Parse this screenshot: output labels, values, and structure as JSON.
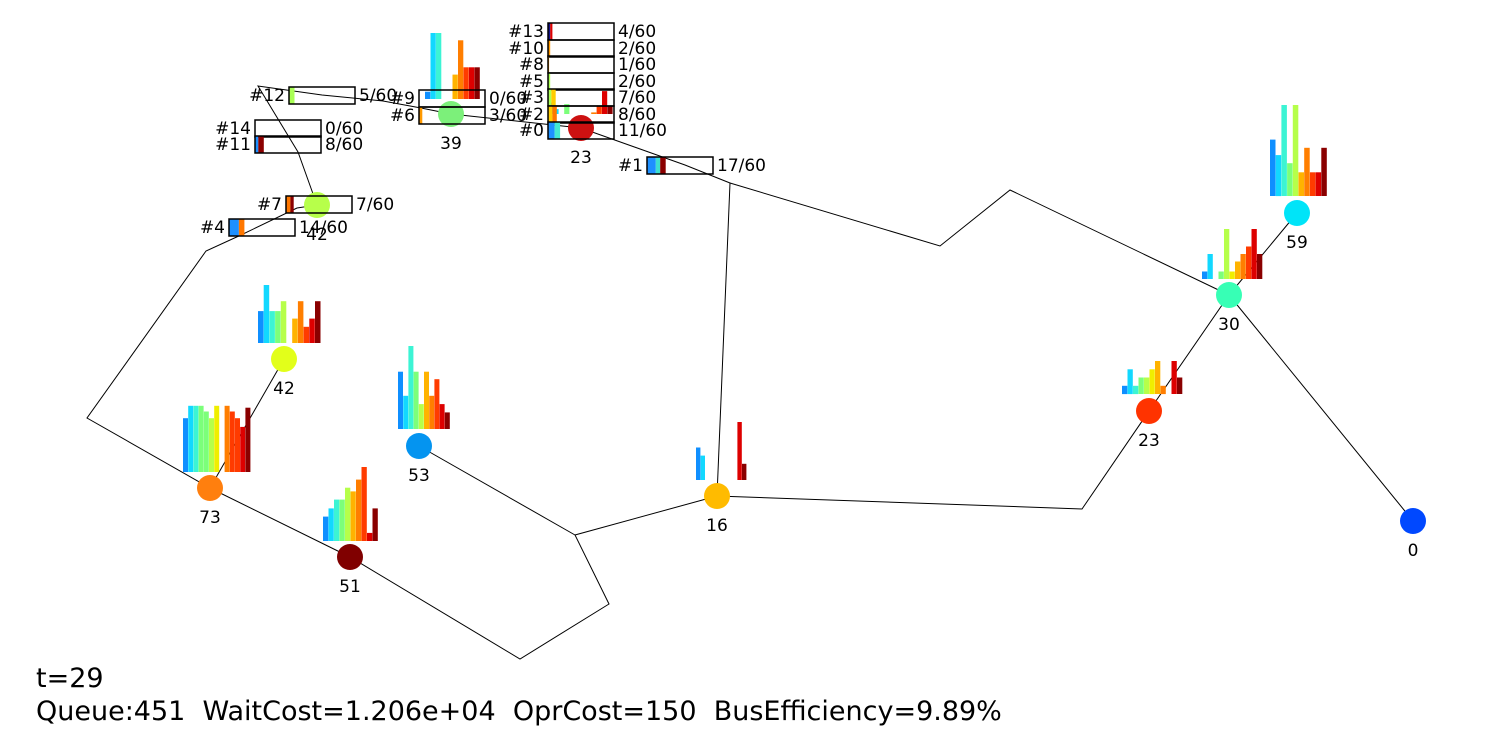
{
  "chart_data": {
    "type": "network",
    "title": "",
    "time_label": "t=29",
    "summary": {
      "queue_label": "Queue:451",
      "wait_cost_label": "WaitCost=1.206e+04",
      "opr_cost_label": "OprCost=150",
      "bus_efficiency_label": "BusEfficiency=9.89%"
    },
    "colormap": [
      "#0f8fff",
      "#12d8ff",
      "#3cf4d4",
      "#7cff7a",
      "#b6ff4a",
      "#f0ee00",
      "#ffb300",
      "#ff7e00",
      "#ff3b00",
      "#dd0000",
      "#8a0000"
    ],
    "stops": [
      {
        "id": "stop-a",
        "queue": 42,
        "label": "42",
        "color": "#e2ff1a",
        "histogram": [
          0.55,
          1.0,
          0.55,
          0.55,
          0.72,
          0.0,
          0.42,
          0.72,
          0.28,
          0.42,
          0.72
        ]
      },
      {
        "id": "stop-b",
        "queue": 73,
        "label": "73",
        "color": "#ff7f0e",
        "histogram": [
          0.56,
          0.69,
          0.69,
          0.69,
          0.63,
          0.56,
          0.69,
          0.0,
          0.69,
          0.63,
          0.56,
          0.47,
          0.67
        ]
      },
      {
        "id": "stop-c",
        "queue": 51,
        "label": "51",
        "color": "#800000",
        "histogram": [
          0.33,
          0.44,
          0.56,
          0.56,
          0.72,
          0.67,
          0.83,
          1.0,
          0.11,
          0.44
        ]
      },
      {
        "id": "stop-d",
        "queue": 53,
        "label": "53",
        "color": "#0494f0",
        "histogram": [
          0.69,
          0.4,
          1.0,
          0.69,
          0.3,
          0.69,
          0.4,
          0.6,
          0.3,
          0.2
        ]
      },
      {
        "id": "stop-e",
        "queue": 16,
        "label": "16",
        "color": "#ffbb00",
        "histogram": [
          0.56,
          0.42,
          0.0,
          0.0,
          0.0,
          0.0,
          0.0,
          0.0,
          0.0,
          1.0,
          0.28
        ]
      },
      {
        "id": "stop-f",
        "queue": 23,
        "label": "23",
        "color": "#ff3300",
        "histogram": [
          0.25,
          0.75,
          0.25,
          0.5,
          0.5,
          0.75,
          1.0,
          0.25,
          0.0,
          1.0,
          0.5
        ]
      },
      {
        "id": "stop-g",
        "queue": 30,
        "label": "30",
        "color": "#37ffb5",
        "histogram": [
          0.15,
          0.5,
          0.0,
          0.15,
          1.0,
          0.15,
          0.35,
          0.5,
          0.65,
          1.0,
          0.5
        ]
      },
      {
        "id": "stop-h",
        "queue": 59,
        "label": "59",
        "color": "#00e4f8",
        "histogram": [
          0.62,
          0.45,
          1.0,
          0.36,
          1.0,
          0.26,
          0.53,
          0.26,
          0.26,
          0.53
        ]
      },
      {
        "id": "stop-i",
        "queue": 0,
        "label": "0",
        "color": "#0048ff",
        "histogram": []
      },
      {
        "id": "stop-j",
        "queue": 23,
        "label": "23",
        "color": "#cc1111",
        "histogram": [
          0.44,
          0.19,
          0.0,
          0.38,
          0.0,
          0.0,
          0.0,
          0.0,
          0.06,
          0.31,
          0.88,
          0.31
        ]
      },
      {
        "id": "stop-k",
        "queue": 39,
        "label": "39",
        "color": "#7cf07a",
        "histogram": [
          0.11,
          1.0,
          1.0,
          0.0,
          0.0,
          0.37,
          0.89,
          0.48,
          0.48,
          0.48
        ]
      },
      {
        "id": "stop-l",
        "queue": 42,
        "label": "42",
        "color": "#b7ff4a",
        "histogram": [
          0.0,
          0.0,
          0.0,
          0.0,
          0.0,
          0.0,
          0.0,
          0.0,
          0.0,
          0.0
        ]
      }
    ],
    "buses": [
      {
        "id": "#13",
        "label": "#13",
        "load": "4/60",
        "fill": 4,
        "capacity": 60,
        "segments": [
          {
            "color": "#12128a",
            "count": 2
          },
          {
            "color": "#dd0000",
            "count": 2
          }
        ]
      },
      {
        "id": "#10",
        "label": "#10",
        "load": "2/60",
        "fill": 2,
        "capacity": 60,
        "segments": [
          {
            "color": "#ff9900",
            "count": 2
          }
        ]
      },
      {
        "id": "#8",
        "label": "#8",
        "load": "1/60",
        "fill": 1,
        "capacity": 60,
        "segments": [
          {
            "color": "#ff9900",
            "count": 1
          }
        ]
      },
      {
        "id": "#5",
        "label": "#5",
        "load": "2/60",
        "fill": 2,
        "capacity": 60,
        "segments": [
          {
            "color": "#aaff55",
            "count": 2
          }
        ]
      },
      {
        "id": "#3",
        "label": "#3",
        "load": "7/60",
        "fill": 7,
        "capacity": 60,
        "segments": [
          {
            "color": "#aaff55",
            "count": 3
          },
          {
            "color": "#ffcc00",
            "count": 4
          }
        ]
      },
      {
        "id": "#2",
        "label": "#2",
        "load": "8/60",
        "fill": 8,
        "capacity": 60,
        "segments": [
          {
            "color": "#ffcc00",
            "count": 4
          },
          {
            "color": "#ff7700",
            "count": 4
          }
        ]
      },
      {
        "id": "#0",
        "label": "#0",
        "load": "11/60",
        "fill": 11,
        "capacity": 60,
        "segments": [
          {
            "color": "#1e90ff",
            "count": 6
          },
          {
            "color": "#44e8d0",
            "count": 5
          }
        ]
      },
      {
        "id": "#9",
        "label": "#9",
        "load": "0/60",
        "fill": 0,
        "capacity": 60,
        "segments": []
      },
      {
        "id": "#6",
        "label": "#6",
        "load": "3/60",
        "fill": 3,
        "capacity": 60,
        "segments": [
          {
            "color": "#ff9900",
            "count": 3
          }
        ]
      },
      {
        "id": "#12",
        "label": "#12",
        "load": "5/60",
        "fill": 5,
        "capacity": 60,
        "segments": [
          {
            "color": "#aaff55",
            "count": 5
          }
        ]
      },
      {
        "id": "#14",
        "label": "#14",
        "load": "0/60",
        "fill": 0,
        "capacity": 60,
        "segments": []
      },
      {
        "id": "#11",
        "label": "#11",
        "load": "8/60",
        "fill": 8,
        "capacity": 60,
        "segments": [
          {
            "color": "#1e90ff",
            "count": 3
          },
          {
            "color": "#8b0000",
            "count": 5
          }
        ]
      },
      {
        "id": "#7",
        "label": "#7",
        "load": "7/60",
        "fill": 7,
        "capacity": 60,
        "segments": [
          {
            "color": "#ff7700",
            "count": 4
          },
          {
            "color": "#8b0000",
            "count": 3
          }
        ]
      },
      {
        "id": "#4",
        "label": "#4",
        "load": "14/60",
        "fill": 14,
        "capacity": 60,
        "segments": [
          {
            "color": "#1e90ff",
            "count": 9
          },
          {
            "color": "#ff7700",
            "count": 5
          }
        ]
      },
      {
        "id": "#1",
        "label": "#1",
        "load": "17/60",
        "fill": 17,
        "capacity": 60,
        "segments": [
          {
            "color": "#1e90ff",
            "count": 8
          },
          {
            "color": "#3ce0d0",
            "count": 4
          },
          {
            "color": "#8b0000",
            "count": 5
          }
        ]
      }
    ]
  }
}
